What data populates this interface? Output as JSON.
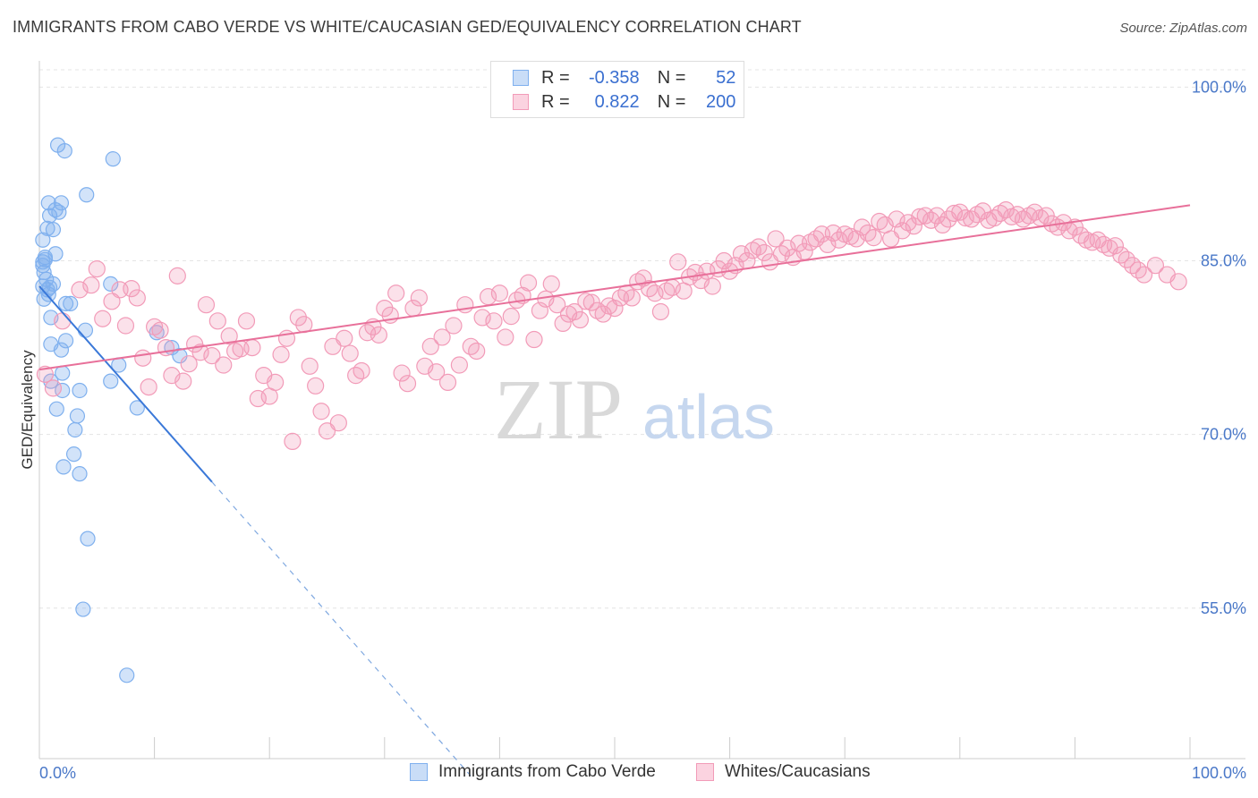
{
  "title": "IMMIGRANTS FROM CABO VERDE VS WHITE/CAUCASIAN GED/EQUIVALENCY CORRELATION CHART",
  "source": "Source: ZipAtlas.com",
  "watermark": {
    "zip": "ZIP",
    "atlas": "atlas"
  },
  "legend": {
    "r_label": "R =",
    "n_label": "N =",
    "rows": [
      {
        "r": "-0.358",
        "n": "52",
        "color": "#7fb0ee"
      },
      {
        "r": "0.822",
        "n": "200",
        "color": "#f29bb8"
      }
    ]
  },
  "chart_data": {
    "type": "scatter",
    "xlabel": "",
    "ylabel": "GED/Equivalency",
    "x_tick_labels": [
      "0.0%",
      "100.0%"
    ],
    "y_tick_labels": [
      "100.0%",
      "85.0%",
      "70.0%",
      "55.0%"
    ],
    "y_ticks": [
      100,
      85,
      70,
      55
    ],
    "xlim": [
      0,
      100
    ],
    "ylim": [
      42,
      101.5
    ],
    "grid": true,
    "series": [
      {
        "name": "Immigrants from Cabo Verde",
        "color": "#7fb0ee",
        "trend": {
          "x0": 0.0,
          "y0": 82.8,
          "x1": 15.0,
          "y1": 65.9,
          "dash_to_x": 37.5,
          "dash_to_y": 40.5
        },
        "points": [
          [
            1.6,
            95.0
          ],
          [
            2.2,
            94.5
          ],
          [
            6.4,
            93.8
          ],
          [
            4.1,
            90.7
          ],
          [
            0.8,
            90.0
          ],
          [
            1.9,
            90.0
          ],
          [
            1.4,
            89.4
          ],
          [
            0.9,
            88.9
          ],
          [
            1.7,
            89.2
          ],
          [
            0.7,
            87.8
          ],
          [
            1.2,
            87.7
          ],
          [
            0.3,
            86.8
          ],
          [
            1.4,
            85.6
          ],
          [
            0.5,
            85.3
          ],
          [
            0.3,
            84.9
          ],
          [
            0.3,
            84.6
          ],
          [
            0.6,
            83.4
          ],
          [
            0.3,
            82.8
          ],
          [
            6.2,
            83.0
          ],
          [
            0.7,
            82.5
          ],
          [
            0.8,
            82.1
          ],
          [
            0.4,
            81.7
          ],
          [
            2.3,
            81.3
          ],
          [
            2.7,
            81.3
          ],
          [
            1.0,
            80.1
          ],
          [
            4.0,
            79.0
          ],
          [
            10.2,
            78.8
          ],
          [
            2.3,
            78.1
          ],
          [
            1.0,
            77.8
          ],
          [
            1.9,
            77.3
          ],
          [
            11.5,
            77.5
          ],
          [
            12.2,
            76.8
          ],
          [
            6.9,
            76.0
          ],
          [
            2.0,
            75.3
          ],
          [
            6.2,
            74.6
          ],
          [
            1.0,
            74.6
          ],
          [
            2.0,
            73.8
          ],
          [
            3.5,
            73.8
          ],
          [
            8.5,
            72.3
          ],
          [
            1.5,
            72.2
          ],
          [
            3.3,
            71.6
          ],
          [
            3.1,
            70.4
          ],
          [
            3.0,
            68.3
          ],
          [
            2.1,
            67.2
          ],
          [
            3.5,
            66.6
          ],
          [
            4.2,
            61.0
          ],
          [
            3.8,
            54.9
          ],
          [
            7.6,
            49.2
          ],
          [
            0.5,
            85.1
          ],
          [
            0.9,
            82.7
          ],
          [
            1.2,
            83.0
          ],
          [
            0.4,
            84.0
          ]
        ]
      },
      {
        "name": "Whites/Caucasians",
        "color": "#f29bb8",
        "trend": {
          "x0": 0.0,
          "y0": 75.6,
          "x1": 100.0,
          "y1": 89.8
        },
        "points": [
          [
            0.5,
            75.2
          ],
          [
            1.2,
            74.0
          ],
          [
            2.0,
            79.8
          ],
          [
            3.5,
            82.5
          ],
          [
            4.5,
            82.9
          ],
          [
            5.0,
            84.3
          ],
          [
            5.5,
            80.0
          ],
          [
            6.3,
            81.5
          ],
          [
            7.0,
            82.5
          ],
          [
            7.5,
            79.4
          ],
          [
            8.0,
            82.6
          ],
          [
            8.5,
            81.8
          ],
          [
            9.0,
            76.6
          ],
          [
            9.5,
            74.1
          ],
          [
            10.0,
            79.3
          ],
          [
            10.5,
            79.0
          ],
          [
            11.0,
            77.5
          ],
          [
            11.5,
            75.1
          ],
          [
            12.0,
            83.7
          ],
          [
            12.5,
            74.6
          ],
          [
            13.0,
            76.1
          ],
          [
            13.5,
            77.8
          ],
          [
            14.0,
            77.1
          ],
          [
            14.5,
            81.2
          ],
          [
            15.0,
            76.8
          ],
          [
            15.5,
            79.8
          ],
          [
            16.0,
            76.0
          ],
          [
            16.5,
            78.5
          ],
          [
            17.0,
            77.2
          ],
          [
            17.5,
            77.4
          ],
          [
            18.0,
            79.8
          ],
          [
            18.5,
            77.5
          ],
          [
            19.0,
            73.1
          ],
          [
            19.5,
            75.1
          ],
          [
            20.0,
            73.3
          ],
          [
            20.5,
            74.5
          ],
          [
            21.0,
            76.9
          ],
          [
            21.5,
            78.3
          ],
          [
            22.0,
            69.4
          ],
          [
            22.5,
            80.1
          ],
          [
            23.0,
            79.5
          ],
          [
            23.5,
            75.9
          ],
          [
            24.0,
            74.2
          ],
          [
            24.5,
            72.0
          ],
          [
            25.0,
            70.3
          ],
          [
            25.5,
            77.6
          ],
          [
            26.0,
            71.0
          ],
          [
            26.5,
            78.3
          ],
          [
            27.0,
            77.0
          ],
          [
            27.5,
            75.1
          ],
          [
            28.0,
            75.5
          ],
          [
            28.5,
            78.8
          ],
          [
            29.0,
            79.3
          ],
          [
            29.5,
            78.6
          ],
          [
            30.0,
            80.9
          ],
          [
            30.5,
            80.3
          ],
          [
            31.0,
            82.2
          ],
          [
            31.5,
            75.3
          ],
          [
            32.0,
            74.4
          ],
          [
            32.5,
            80.9
          ],
          [
            33.0,
            81.8
          ],
          [
            33.5,
            75.9
          ],
          [
            34.0,
            77.6
          ],
          [
            34.5,
            75.4
          ],
          [
            35.0,
            78.4
          ],
          [
            35.5,
            74.5
          ],
          [
            36.0,
            79.4
          ],
          [
            36.5,
            76.0
          ],
          [
            37.0,
            81.2
          ],
          [
            37.5,
            77.6
          ],
          [
            38.0,
            77.2
          ],
          [
            38.5,
            80.1
          ],
          [
            39.0,
            81.9
          ],
          [
            39.5,
            79.8
          ],
          [
            40.0,
            82.2
          ],
          [
            40.5,
            78.4
          ],
          [
            41.0,
            80.2
          ],
          [
            41.5,
            81.6
          ],
          [
            42.0,
            82.0
          ],
          [
            42.5,
            83.1
          ],
          [
            43.0,
            78.2
          ],
          [
            43.5,
            80.7
          ],
          [
            44.0,
            81.7
          ],
          [
            44.5,
            83.0
          ],
          [
            45.0,
            81.2
          ],
          [
            45.5,
            79.6
          ],
          [
            46.0,
            80.4
          ],
          [
            46.5,
            80.6
          ],
          [
            47.0,
            79.9
          ],
          [
            47.5,
            81.5
          ],
          [
            48.0,
            81.4
          ],
          [
            48.5,
            80.7
          ],
          [
            49.0,
            80.4
          ],
          [
            49.5,
            81.1
          ],
          [
            50.0,
            80.9
          ],
          [
            50.5,
            81.8
          ],
          [
            51.0,
            82.2
          ],
          [
            51.5,
            81.8
          ],
          [
            52.0,
            83.2
          ],
          [
            52.5,
            83.5
          ],
          [
            53.0,
            82.6
          ],
          [
            53.5,
            82.2
          ],
          [
            54.0,
            80.6
          ],
          [
            54.5,
            82.4
          ],
          [
            55.0,
            82.7
          ],
          [
            55.5,
            84.9
          ],
          [
            56.0,
            82.4
          ],
          [
            56.5,
            83.6
          ],
          [
            57.0,
            84.0
          ],
          [
            57.5,
            83.3
          ],
          [
            58.0,
            84.1
          ],
          [
            58.5,
            82.8
          ],
          [
            59.0,
            84.3
          ],
          [
            59.5,
            85.0
          ],
          [
            60.0,
            84.1
          ],
          [
            60.5,
            84.6
          ],
          [
            61.0,
            85.6
          ],
          [
            61.5,
            85.0
          ],
          [
            62.0,
            85.9
          ],
          [
            62.5,
            86.2
          ],
          [
            63.0,
            85.7
          ],
          [
            63.5,
            84.9
          ],
          [
            64.0,
            86.9
          ],
          [
            64.5,
            85.6
          ],
          [
            65.0,
            86.1
          ],
          [
            65.5,
            85.3
          ],
          [
            66.0,
            86.5
          ],
          [
            66.5,
            85.8
          ],
          [
            67.0,
            86.6
          ],
          [
            67.5,
            86.9
          ],
          [
            68.0,
            87.3
          ],
          [
            68.5,
            86.4
          ],
          [
            69.0,
            87.4
          ],
          [
            69.5,
            86.8
          ],
          [
            70.0,
            87.3
          ],
          [
            70.5,
            87.1
          ],
          [
            71.0,
            86.9
          ],
          [
            71.5,
            87.9
          ],
          [
            72.0,
            87.4
          ],
          [
            72.5,
            87.0
          ],
          [
            73.0,
            88.4
          ],
          [
            73.5,
            88.1
          ],
          [
            74.0,
            86.9
          ],
          [
            74.5,
            88.6
          ],
          [
            75.0,
            87.6
          ],
          [
            75.5,
            88.3
          ],
          [
            76.0,
            88.0
          ],
          [
            76.5,
            88.8
          ],
          [
            77.0,
            88.9
          ],
          [
            77.5,
            88.5
          ],
          [
            78.0,
            88.9
          ],
          [
            78.5,
            88.1
          ],
          [
            79.0,
            88.6
          ],
          [
            79.5,
            89.1
          ],
          [
            80.0,
            89.2
          ],
          [
            80.5,
            88.7
          ],
          [
            81.0,
            88.6
          ],
          [
            81.5,
            89.0
          ],
          [
            82.0,
            89.3
          ],
          [
            82.5,
            88.5
          ],
          [
            83.0,
            88.7
          ],
          [
            83.5,
            89.1
          ],
          [
            84.0,
            89.4
          ],
          [
            84.5,
            88.8
          ],
          [
            85.0,
            89.0
          ],
          [
            85.5,
            88.6
          ],
          [
            86.0,
            88.9
          ],
          [
            86.5,
            89.2
          ],
          [
            87.0,
            88.7
          ],
          [
            87.5,
            88.9
          ],
          [
            88.0,
            88.2
          ],
          [
            88.5,
            87.9
          ],
          [
            89.0,
            88.3
          ],
          [
            89.5,
            87.6
          ],
          [
            90.0,
            87.9
          ],
          [
            90.5,
            87.2
          ],
          [
            91.0,
            86.8
          ],
          [
            91.5,
            86.6
          ],
          [
            92.0,
            86.8
          ],
          [
            92.5,
            86.4
          ],
          [
            93.0,
            86.1
          ],
          [
            93.5,
            86.3
          ],
          [
            94.0,
            85.5
          ],
          [
            94.5,
            85.1
          ],
          [
            95.0,
            84.6
          ],
          [
            95.5,
            84.2
          ],
          [
            96.0,
            83.8
          ],
          [
            97.0,
            84.6
          ],
          [
            98.0,
            83.8
          ],
          [
            99.0,
            83.2
          ]
        ]
      }
    ]
  },
  "bottom_legend": [
    {
      "label": "Immigrants from Cabo Verde",
      "color": "#7fb0ee"
    },
    {
      "label": "Whites/Caucasians",
      "color": "#f29bb8"
    }
  ]
}
